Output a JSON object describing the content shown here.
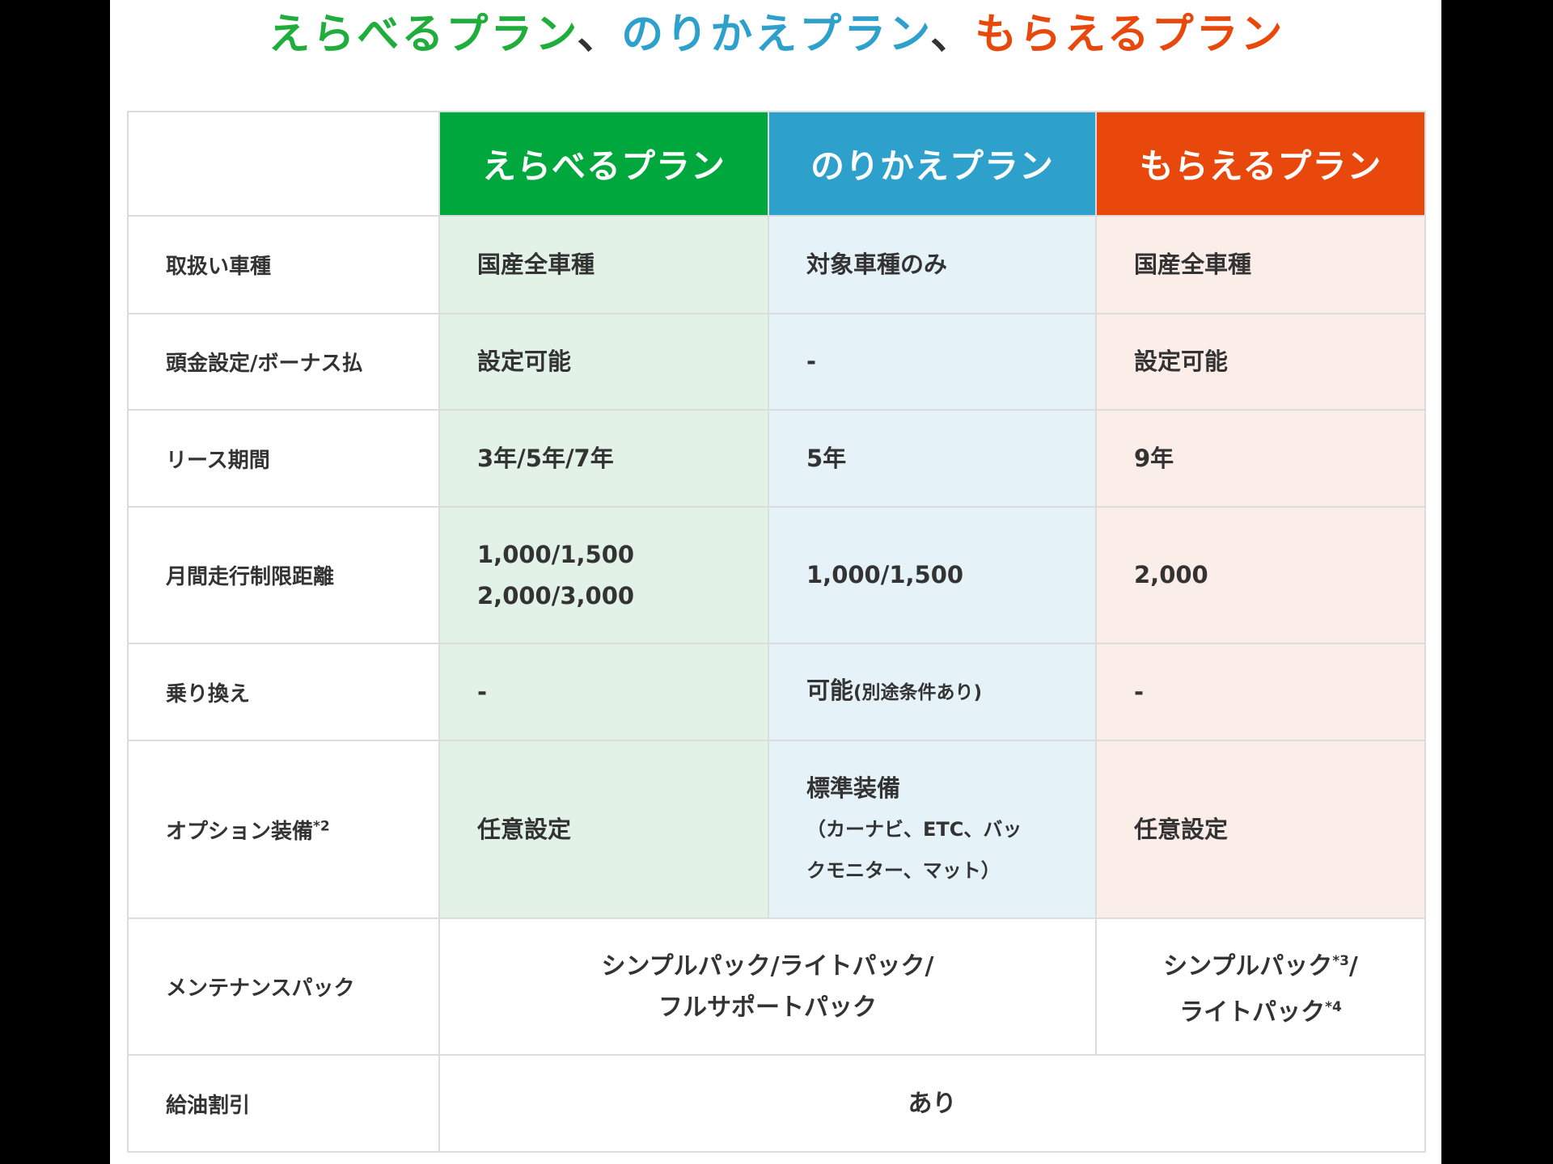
{
  "title": {
    "parts": [
      {
        "text": "えらべるプラン",
        "color": "#1fae3c"
      },
      {
        "text": "、",
        "color": "#333333"
      },
      {
        "text": "のりかえプラン",
        "color": "#2ea0cc"
      },
      {
        "text": "、",
        "color": "#333333"
      },
      {
        "text": "もらえるプラン",
        "color": "#e8480c"
      }
    ]
  },
  "colors": {
    "green": "#00a73c",
    "blue": "#2ea0cc",
    "orange": "#e8480c",
    "green_tint": "#e2f2e6",
    "blue_tint": "#e5f2f8",
    "orange_tint": "#fbede8"
  },
  "table": {
    "headers": [
      "えらべるプラン",
      "のりかえプラン",
      "もらえるプラン"
    ],
    "rows": [
      {
        "label": "取扱い車種",
        "cells": [
          "国産全車種",
          "対象車種のみ",
          "国産全車種"
        ]
      },
      {
        "label": "頭金設定/ボーナス払",
        "cells": [
          "設定可能",
          "-",
          "設定可能"
        ]
      },
      {
        "label": "リース期間",
        "cells": [
          "3年/5年/7年",
          "5年",
          "9年"
        ]
      },
      {
        "label": "月間走行制限距離",
        "cells": [
          "1,000/1,500",
          "1,000/1,500",
          "2,000"
        ],
        "cell0_line2": "2,000/3,000"
      },
      {
        "label": "乗り換え",
        "cells": [
          "-",
          "可能",
          "-"
        ],
        "cell1_note": "(別途条件あり)"
      },
      {
        "label": "オプション装備",
        "label_sup": "*2",
        "cells": [
          "任意設定",
          "標準装備",
          "任意設定"
        ],
        "cell1_note1": "（カーナビ、ETC、バッ",
        "cell1_note2": "クモニター、マット）"
      },
      {
        "label": "メンテナンスパック",
        "merged": "シンプルパック/ライトパック/",
        "merged_line2": "フルサポートパック",
        "cell2": "シンプルパック",
        "cell2_sup": "*3",
        "cell2_slash": "/",
        "cell2_line2": "ライトパック",
        "cell2_sup2": "*4"
      },
      {
        "label": "給油割引",
        "merged": "あり"
      }
    ]
  }
}
